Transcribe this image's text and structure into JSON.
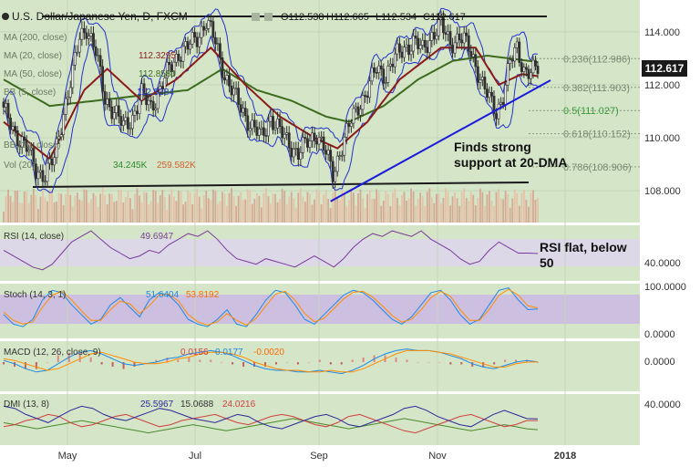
{
  "header": {
    "title": "U.S. Dollar/Japanese Yen, D, FXCM",
    "ohlc": [
      "O112.538",
      "H112.665",
      "L112.534",
      "C112.617"
    ],
    "price_badge": "112.617"
  },
  "price_panel": {
    "legend": [
      {
        "label": "MA (200, close)",
        "value": ""
      },
      {
        "label": "MA (20, close)",
        "value": "112.3295"
      },
      {
        "label": "MA (50, close)",
        "value": "112.8580"
      },
      {
        "label": "BB (5, close)",
        "value": "112.5284"
      },
      {
        "label": "BB (20, close)",
        "value": ""
      },
      {
        "label": "Vol (20)",
        "value": "34.245K",
        "value2": "259.582K"
      }
    ],
    "fib_levels": [
      {
        "label": "0.236(112.986)",
        "price": 112.986
      },
      {
        "label": "0.382(111.903)",
        "price": 111.903
      },
      {
        "label": "0.5(111.027)",
        "price": 111.027
      },
      {
        "label": "0.618(110.152)",
        "price": 110.152
      },
      {
        "label": "0.786(108.906)",
        "price": 108.906
      }
    ],
    "annotation": [
      "Finds strong",
      "support at 20-DMA"
    ]
  },
  "rsi_panel": {
    "legend": "RSI (14, close)",
    "value": "49.6947",
    "annotation": [
      "RSI flat, below",
      "50"
    ]
  },
  "stoch_panel": {
    "legend": "Stoch (14, 3, 1)",
    "values": [
      "51.6404",
      "53.8192"
    ]
  },
  "macd_panel": {
    "legend": "MACD (12, 26, close, 9)",
    "values": [
      "0.0156",
      "0.0177",
      "-0.0020"
    ]
  },
  "dmi_panel": {
    "legend": "DMI (13, 8)",
    "values": [
      "25.5967",
      "15.0688",
      "24.0216"
    ]
  },
  "colors": {
    "bg": "#d5e5c8",
    "candle": "#303030",
    "ma20": "#8b1a1a",
    "ma50": "#3d6b1e",
    "bb": "#2233cc",
    "trendline": "#1a1adc",
    "rsi": "#7b3a9a",
    "macd": "#1e88e5",
    "signal": "#ff8c00",
    "dmi_plus": "#2a2a9a",
    "dmi_minus": "#d04040",
    "adx": "#4a8a2a"
  },
  "chart_data": [
    {
      "type": "candlestick",
      "title": "U.S. Dollar/Japanese Yen, D, FXCM",
      "x_ticks": [
        "May",
        "Jul",
        "Sep",
        "Nov",
        "2018"
      ],
      "ylim": [
        106.8,
        115.2
      ],
      "y_ticks": [
        "108.000",
        "110.000",
        "112.000",
        "114.000"
      ],
      "close_path": [
        [
          0,
          111.0
        ],
        [
          5,
          110.2
        ],
        [
          10,
          109.6
        ],
        [
          14,
          108.8
        ],
        [
          18,
          108.6
        ],
        [
          22,
          109.2
        ],
        [
          26,
          111.0
        ],
        [
          30,
          112.4
        ],
        [
          33,
          113.8
        ],
        [
          36,
          114.2
        ],
        [
          40,
          113.2
        ],
        [
          44,
          111.5
        ],
        [
          48,
          111.0
        ],
        [
          52,
          110.4
        ],
        [
          56,
          110.8
        ],
        [
          60,
          111.6
        ],
        [
          64,
          111.2
        ],
        [
          68,
          111.8
        ],
        [
          72,
          112.6
        ],
        [
          76,
          113.2
        ],
        [
          80,
          113.4
        ],
        [
          84,
          113.8
        ],
        [
          88,
          114.4
        ],
        [
          92,
          113.6
        ],
        [
          96,
          112.4
        ],
        [
          100,
          111.6
        ],
        [
          104,
          111.0
        ],
        [
          108,
          110.4
        ],
        [
          112,
          110.0
        ],
        [
          116,
          110.8
        ],
        [
          120,
          110.2
        ],
        [
          124,
          109.8
        ],
        [
          128,
          109.4
        ],
        [
          132,
          109.8
        ],
        [
          136,
          110.2
        ],
        [
          140,
          109.4
        ],
        [
          143,
          108.6
        ],
        [
          146,
          109.5
        ],
        [
          150,
          110.4
        ],
        [
          154,
          111.2
        ],
        [
          158,
          111.8
        ],
        [
          162,
          112.6
        ],
        [
          166,
          112.4
        ],
        [
          170,
          113.0
        ],
        [
          174,
          113.4
        ],
        [
          178,
          113.6
        ],
        [
          182,
          113.3
        ],
        [
          186,
          113.9
        ],
        [
          190,
          114.2
        ],
        [
          194,
          113.6
        ],
        [
          198,
          113.8
        ],
        [
          202,
          113.4
        ],
        [
          205,
          112.8
        ],
        [
          208,
          112.0
        ],
        [
          211,
          111.4
        ],
        [
          214,
          111.0
        ],
        [
          217,
          111.6
        ],
        [
          220,
          112.8
        ],
        [
          223,
          113.4
        ],
        [
          226,
          112.6
        ],
        [
          229,
          112.4
        ],
        [
          232,
          112.617
        ]
      ],
      "ma20_path": [
        [
          0,
          110.6
        ],
        [
          20,
          109.2
        ],
        [
          35,
          111.8
        ],
        [
          45,
          112.6
        ],
        [
          60,
          111.4
        ],
        [
          75,
          112.2
        ],
        [
          90,
          113.4
        ],
        [
          105,
          112.0
        ],
        [
          120,
          110.8
        ],
        [
          135,
          110.0
        ],
        [
          145,
          109.6
        ],
        [
          158,
          110.6
        ],
        [
          172,
          112.2
        ],
        [
          190,
          113.4
        ],
        [
          205,
          113.4
        ],
        [
          215,
          112.0
        ],
        [
          225,
          112.4
        ],
        [
          232,
          112.33
        ]
      ],
      "ma50_path": [
        [
          0,
          112.2
        ],
        [
          20,
          111.2
        ],
        [
          40,
          111.4
        ],
        [
          60,
          111.6
        ],
        [
          80,
          111.8
        ],
        [
          95,
          112.6
        ],
        [
          110,
          111.8
        ],
        [
          125,
          111.4
        ],
        [
          140,
          110.8
        ],
        [
          150,
          110.6
        ],
        [
          165,
          111.2
        ],
        [
          180,
          112.2
        ],
        [
          195,
          112.9
        ],
        [
          210,
          113.1
        ],
        [
          232,
          112.86
        ]
      ],
      "fib_levels": [
        112.986,
        111.903,
        111.027,
        110.152,
        108.906
      ],
      "resistance": 114.7,
      "support": 108.3,
      "trendline": [
        [
          142,
          107.6
        ],
        [
          232,
          112.1
        ]
      ],
      "volume_max": 259.582,
      "volume_last": 34.245
    },
    {
      "type": "line",
      "name": "RSI (14, close)",
      "ylim": [
        30,
        70
      ],
      "y_ticks": [
        "40.0000"
      ],
      "last": 49.6947,
      "values": [
        52,
        48,
        44,
        40,
        38,
        42,
        50,
        58,
        62,
        66,
        60,
        54,
        50,
        46,
        48,
        52,
        50,
        56,
        60,
        64,
        62,
        66,
        60,
        52,
        46,
        44,
        42,
        46,
        44,
        42,
        40,
        44,
        48,
        44,
        40,
        46,
        54,
        60,
        64,
        62,
        66,
        64,
        62,
        66,
        60,
        56,
        52,
        46,
        42,
        44,
        52,
        58,
        54,
        50,
        50,
        49.7
      ]
    },
    {
      "type": "line",
      "name": "Stoch (14, 3, 1)",
      "ylim": [
        0,
        100
      ],
      "y_ticks": [
        "0.0000",
        "100.0000"
      ],
      "values_k": [
        40,
        20,
        15,
        30,
        70,
        90,
        85,
        60,
        40,
        20,
        30,
        60,
        75,
        55,
        35,
        70,
        85,
        80,
        60,
        30,
        20,
        15,
        30,
        50,
        20,
        15,
        40,
        70,
        90,
        85,
        60,
        30,
        20,
        40,
        60,
        80,
        90,
        85,
        70,
        50,
        30,
        20,
        35,
        60,
        85,
        90,
        70,
        40,
        20,
        30,
        60,
        90,
        95,
        70,
        50,
        51.6
      ],
      "values_d": [
        45,
        28,
        20,
        25,
        55,
        80,
        88,
        70,
        48,
        28,
        28,
        50,
        68,
        62,
        42,
        58,
        80,
        82,
        68,
        40,
        25,
        18,
        25,
        42,
        28,
        18,
        32,
        58,
        82,
        88,
        70,
        42,
        25,
        32,
        52,
        72,
        86,
        88,
        76,
        58,
        38,
        24,
        30,
        50,
        75,
        88,
        78,
        50,
        28,
        28,
        50,
        80,
        92,
        80,
        58,
        53.8
      ]
    },
    {
      "type": "bar",
      "name": "MACD (12, 26, close, 9)",
      "y_ticks": [
        "0.0000"
      ],
      "macd": [
        0.1,
        -0.1,
        -0.4,
        -0.6,
        -0.5,
        -0.1,
        0.3,
        0.6,
        0.7,
        0.5,
        0.2,
        -0.1,
        -0.2,
        -0.1,
        0.0,
        0.2,
        0.3,
        0.5,
        0.6,
        0.7,
        0.6,
        0.4,
        0.1,
        -0.2,
        -0.4,
        -0.5,
        -0.5,
        -0.6,
        -0.6,
        -0.5,
        -0.6,
        -0.7,
        -0.5,
        -0.2,
        0.2,
        0.5,
        0.7,
        0.8,
        0.7,
        0.7,
        0.6,
        0.4,
        0.2,
        -0.1,
        -0.3,
        -0.4,
        -0.2,
        0.0,
        0.1,
        0.0156
      ],
      "signal": [
        0.2,
        0.1,
        -0.1,
        -0.3,
        -0.5,
        -0.4,
        -0.1,
        0.2,
        0.5,
        0.6,
        0.4,
        0.2,
        0.0,
        -0.1,
        -0.1,
        0.0,
        0.2,
        0.3,
        0.5,
        0.6,
        0.6,
        0.5,
        0.3,
        0.0,
        -0.2,
        -0.4,
        -0.5,
        -0.5,
        -0.6,
        -0.6,
        -0.5,
        -0.6,
        -0.6,
        -0.4,
        -0.1,
        0.2,
        0.5,
        0.7,
        0.7,
        0.7,
        0.6,
        0.5,
        0.3,
        0.1,
        -0.1,
        -0.3,
        -0.3,
        -0.1,
        0.0,
        0.0177
      ]
    },
    {
      "type": "line",
      "name": "DMI (13, 8)",
      "ylim": [
        0,
        50
      ],
      "y_ticks": [
        "40.0000"
      ],
      "plus_di": [
        38,
        36,
        30,
        26,
        22,
        28,
        34,
        38,
        36,
        30,
        26,
        24,
        28,
        32,
        36,
        34,
        30,
        26,
        24,
        22,
        26,
        30,
        28,
        22,
        18,
        16,
        20,
        24,
        28,
        30,
        26,
        20,
        18,
        22,
        26,
        30,
        36,
        38,
        34,
        28,
        24,
        20,
        18,
        24,
        30,
        34,
        30,
        26,
        25.6
      ],
      "minus_di": [
        18,
        20,
        24,
        26,
        30,
        28,
        22,
        18,
        20,
        24,
        28,
        30,
        26,
        22,
        18,
        20,
        24,
        26,
        28,
        30,
        26,
        22,
        20,
        24,
        28,
        30,
        28,
        24,
        20,
        18,
        22,
        28,
        30,
        26,
        22,
        18,
        14,
        12,
        16,
        20,
        24,
        28,
        30,
        26,
        22,
        18,
        20,
        24,
        24.0
      ],
      "adx": [
        22,
        20,
        18,
        16,
        18,
        20,
        22,
        24,
        22,
        20,
        18,
        16,
        14,
        12,
        14,
        16,
        18,
        20,
        18,
        16,
        14,
        16,
        18,
        20,
        22,
        24,
        26,
        24,
        22,
        20,
        18,
        16,
        18,
        20,
        22,
        24,
        26,
        24,
        22,
        20,
        18,
        16,
        14,
        16,
        18,
        20,
        18,
        16,
        15.1
      ]
    }
  ]
}
